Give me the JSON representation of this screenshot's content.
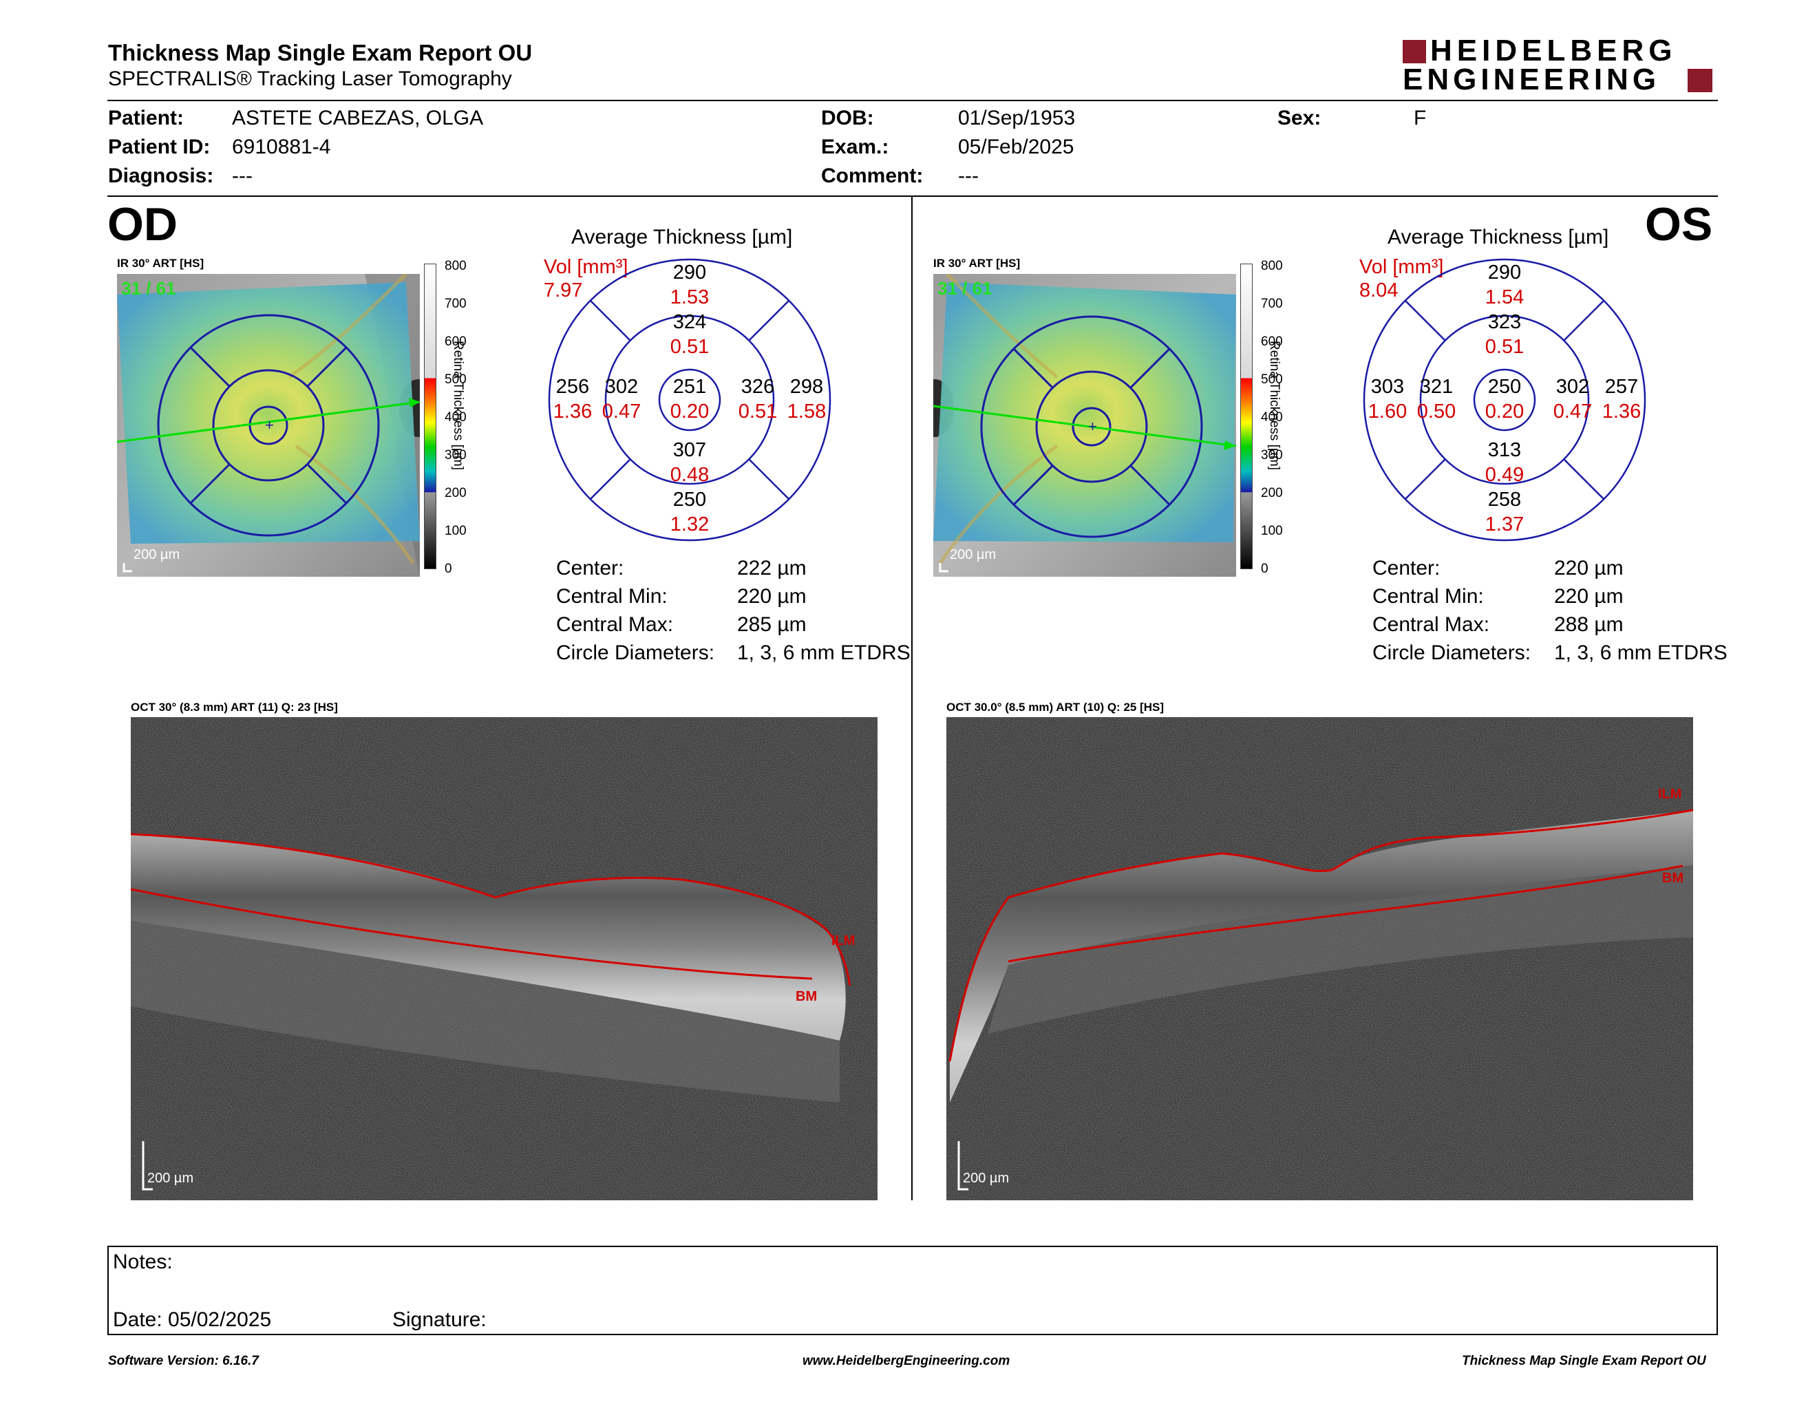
{
  "header": {
    "title": "Thickness Map Single Exam Report OU",
    "subtitle": "SPECTRALIS® Tracking Laser Tomography",
    "logo_line1": "HEIDELBERG",
    "logo_line2": "ENGINEERING"
  },
  "patient": {
    "patient_label": "Patient:",
    "patient_value": "ASTETE CABEZAS, OLGA",
    "id_label": "Patient ID:",
    "id_value": "6910881-4",
    "diagnosis_label": "Diagnosis:",
    "diagnosis_value": "---",
    "dob_label": "DOB:",
    "dob_value": "01/Sep/1953",
    "exam_label": "Exam.:",
    "exam_value": "05/Feb/2025",
    "comment_label": "Comment:",
    "comment_value": "---",
    "sex_label": "Sex:",
    "sex_value": "F"
  },
  "od": {
    "eye_label": "OD",
    "fundus_label": "IR 30° ART [HS]",
    "frame": "31 / 61",
    "scale": "200 µm",
    "colorbar_ticks": [
      "800",
      "700",
      "600",
      "500",
      "400",
      "300",
      "200",
      "100",
      "0"
    ],
    "colorbar_title": "Retina Thickness [µm]",
    "avg_title": "Average Thickness [µm]",
    "vol_label": "Vol [mm³]",
    "vol_total": "7.97",
    "grid": {
      "outer_top": "290",
      "outer_top_v": "1.53",
      "inner_top": "324",
      "inner_top_v": "0.51",
      "outer_left": "256",
      "outer_left_v": "1.36",
      "inner_left": "302",
      "inner_left_v": "0.47",
      "center": "251",
      "center_v": "0.20",
      "inner_right": "326",
      "inner_right_v": "0.51",
      "outer_right": "298",
      "outer_right_v": "1.58",
      "inner_bottom": "307",
      "inner_bottom_v": "0.48",
      "outer_bottom": "250",
      "outer_bottom_v": "1.32"
    },
    "stats": {
      "center_label": "Center:",
      "center_value": "222 µm",
      "min_label": "Central Min:",
      "min_value": "220 µm",
      "max_label": "Central Max:",
      "max_value": "285 µm",
      "diam_label": "Circle Diameters:",
      "diam_value": "1, 3, 6 mm ETDRS"
    },
    "oct_label": "OCT 30° (8.3 mm) ART (11) Q: 23 [HS]",
    "oct_ilm": "ILM",
    "oct_bm": "BM",
    "oct_scale": "200 µm"
  },
  "os": {
    "eye_label": "OS",
    "fundus_label": "IR 30° ART [HS]",
    "frame": "31 / 61",
    "scale": "200 µm",
    "colorbar_ticks": [
      "800",
      "700",
      "600",
      "500",
      "400",
      "300",
      "200",
      "100",
      "0"
    ],
    "colorbar_title": "Retina Thickness [µm]",
    "avg_title": "Average Thickness [µm]",
    "vol_label": "Vol [mm³]",
    "vol_total": "8.04",
    "grid": {
      "outer_top": "290",
      "outer_top_v": "1.54",
      "inner_top": "323",
      "inner_top_v": "0.51",
      "outer_left": "303",
      "outer_left_v": "1.60",
      "inner_left": "321",
      "inner_left_v": "0.50",
      "center": "250",
      "center_v": "0.20",
      "inner_right": "302",
      "inner_right_v": "0.47",
      "outer_right": "257",
      "outer_right_v": "1.36",
      "inner_bottom": "313",
      "inner_bottom_v": "0.49",
      "outer_bottom": "258",
      "outer_bottom_v": "1.37"
    },
    "stats": {
      "center_label": "Center:",
      "center_value": "220 µm",
      "min_label": "Central Min:",
      "min_value": "220 µm",
      "max_label": "Central Max:",
      "max_value": "288 µm",
      "diam_label": "Circle Diameters:",
      "diam_value": "1, 3, 6 mm ETDRS"
    },
    "oct_label": "OCT 30.0° (8.5 mm) ART (10) Q: 25 [HS]",
    "oct_ilm": "ILM",
    "oct_bm": "BM",
    "oct_scale": "200 µm"
  },
  "notes": {
    "notes_label": "Notes:",
    "date_label": "Date: 05/02/2025",
    "signature_label": "Signature:"
  },
  "footer": {
    "version": "Software Version: 6.16.7",
    "url": "www.HeidelbergEngineering.com",
    "report": "Thickness Map Single Exam Report OU"
  },
  "colors": {
    "accent_red": "#d40000",
    "grid_blue": "#1a1aa6",
    "logo_red": "#8b1a2b"
  }
}
